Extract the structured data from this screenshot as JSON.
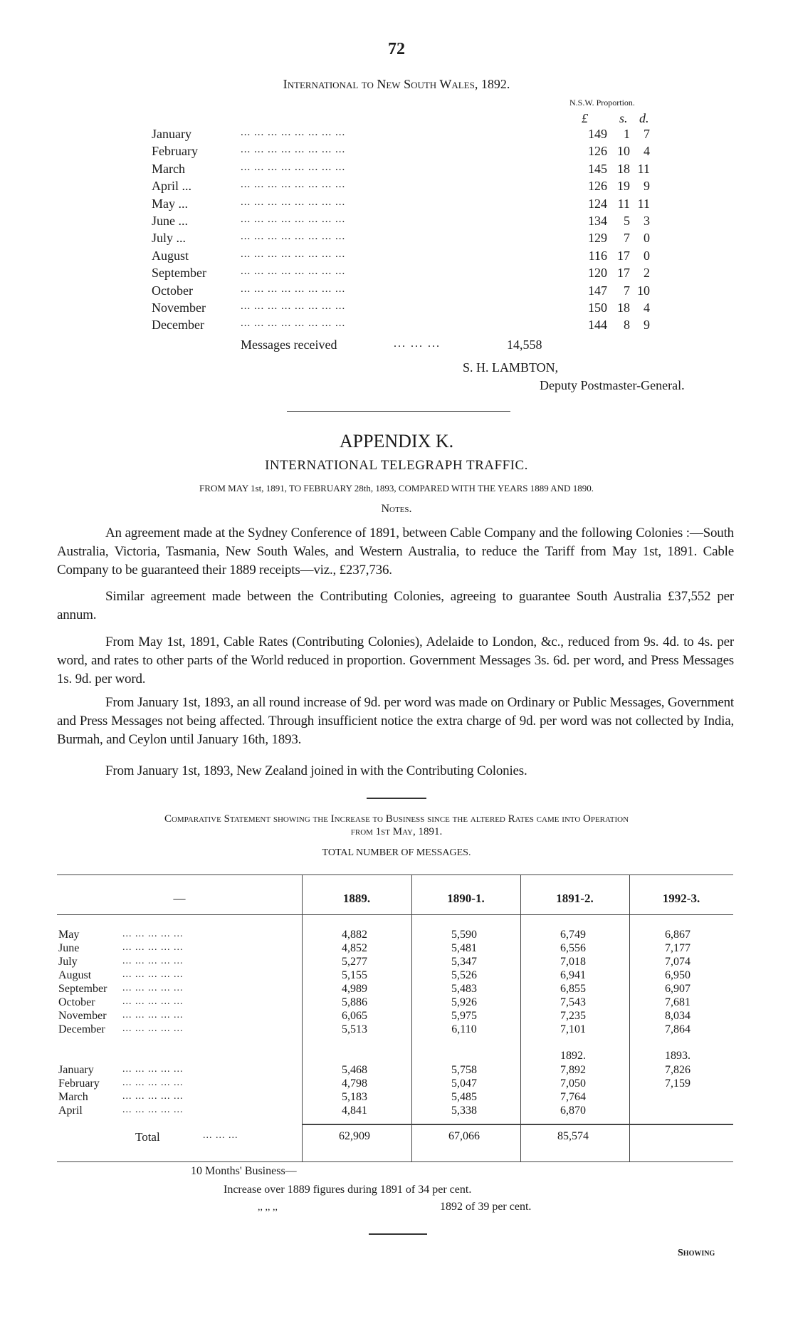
{
  "page_number": "72",
  "nsw": {
    "title": "International to New South Wales, 1892.",
    "proportion_header": "N.S.W. Proportion.",
    "units": [
      "£",
      "s.",
      "d."
    ],
    "leader": "...      ...      ...      ...      ...      ...      ...      ...",
    "rows": [
      {
        "month": "January",
        "l": "149",
        "s": "1",
        "d": "7"
      },
      {
        "month": "February",
        "l": "126",
        "s": "10",
        "d": "4"
      },
      {
        "month": "March",
        "l": "145",
        "s": "18",
        "d": "11"
      },
      {
        "month": "April ...",
        "l": "126",
        "s": "19",
        "d": "9"
      },
      {
        "month": "May  ...",
        "l": "124",
        "s": "11",
        "d": "11"
      },
      {
        "month": "June  ...",
        "l": "134",
        "s": "5",
        "d": "3"
      },
      {
        "month": "July  ...",
        "l": "129",
        "s": "7",
        "d": "0"
      },
      {
        "month": "August",
        "l": "116",
        "s": "17",
        "d": "0"
      },
      {
        "month": "September",
        "l": "120",
        "s": "17",
        "d": "2"
      },
      {
        "month": "October",
        "l": "147",
        "s": "7",
        "d": "10"
      },
      {
        "month": "November",
        "l": "150",
        "s": "18",
        "d": "4"
      },
      {
        "month": "December",
        "l": "144",
        "s": "8",
        "d": "9"
      }
    ],
    "messages_label": "Messages received",
    "messages_leader": "...      ...      ...",
    "messages_value": "14,558",
    "signature_name": "S. H. LAMBTON,",
    "signature_title": "Deputy Postmaster-General."
  },
  "appendix": {
    "title": "APPENDIX  K.",
    "subtitle": "INTERNATIONAL  TELEGRAPH  TRAFFIC.",
    "period": "FROM MAY 1st, 1891, TO FEBRUARY 28th, 1893, COMPARED WITH THE YEARS 1889 AND 1890.",
    "notes_heading": "Notes.",
    "paragraphs": [
      "An agreement made at the Sydney Conference of 1891, between Cable Company and the following Colonies :—South Australia, Victoria, Tasmania, New South Wales, and Western Australia, to reduce the Tariff from May 1st, 1891.  Cable Company to be guaranteed their 1889 receipts—viz., £237,736.",
      "Similar agreement made between the Contributing Colonies, agreeing to guarantee South Australia £37,552 per annum.",
      "From May 1st, 1891, Cable Rates (Contributing Colonies), Adelaide to London, &c., reduced from 9s. 4d. to 4s. per word, and rates to other parts of the World reduced in proportion.  Government Messages 3s. 6d. per word, and Press Messages 1s. 9d. per word.",
      "From January 1st, 1893, an all round increase of 9d. per word was made on Ordinary or Public Messages, Government and Press Messages not being affected.  Through insufficient notice the extra charge of 9d. per word was not collected by India, Burmah, and Ceylon until January 16th, 1893.",
      "From January 1st, 1893, New Zealand joined in with the Contributing Colonies."
    ]
  },
  "comparative": {
    "heading_line1": "Comparative Statement  showing the Increase to Business since the altered Rates came into Operation",
    "heading_line2": "from 1st May, 1891.",
    "table_title": "TOTAL NUMBER OF MESSAGES.",
    "corner": "—",
    "columns": [
      "1889.",
      "1890-1.",
      "1891-2.",
      "1992-3."
    ],
    "leader": "...      ...      ...      ...      ...",
    "rows_first": [
      {
        "month": "May",
        "values": [
          "4,882",
          "5,590",
          "6,749",
          "6,867"
        ]
      },
      {
        "month": "June",
        "values": [
          "4,852",
          "5,481",
          "6,556",
          "7,177"
        ]
      },
      {
        "month": "July",
        "values": [
          "5,277",
          "5,347",
          "7,018",
          "7,074"
        ]
      },
      {
        "month": "August",
        "values": [
          "5,155",
          "5,526",
          "6,941",
          "6,950"
        ]
      },
      {
        "month": "September",
        "values": [
          "4,989",
          "5,483",
          "6,855",
          "6,907"
        ]
      },
      {
        "month": "October",
        "values": [
          "5,886",
          "5,926",
          "7,543",
          "7,681"
        ]
      },
      {
        "month": "November",
        "values": [
          "6,065",
          "5,975",
          "7,235",
          "8,034"
        ]
      },
      {
        "month": "December",
        "values": [
          "5,513",
          "6,110",
          "7,101",
          "7,864"
        ]
      }
    ],
    "year_labels": [
      "",
      "",
      "1892.",
      "1893."
    ],
    "rows_second": [
      {
        "month": "January",
        "values": [
          "5,468",
          "5,758",
          "7,892",
          "7,826"
        ]
      },
      {
        "month": "February",
        "values": [
          "4,798",
          "5,047",
          "7,050",
          "7,159"
        ]
      },
      {
        "month": "March",
        "values": [
          "5,183",
          "5,485",
          "7,764",
          ""
        ]
      },
      {
        "month": "April",
        "values": [
          "4,841",
          "5,338",
          "6,870",
          ""
        ]
      }
    ],
    "total_label": "Total",
    "total_leader": "...      ...      ...",
    "totals": [
      "62,909",
      "67,066",
      "85,574",
      ""
    ]
  },
  "summary": {
    "heading": "10 Months' Business—",
    "line1": "Increase over 1889 figures during 1891 of 34 per cent.",
    "ditto": ",,            ,,            ,,",
    "line2": "1892 of 39 per cent."
  },
  "catchword": "Showing"
}
